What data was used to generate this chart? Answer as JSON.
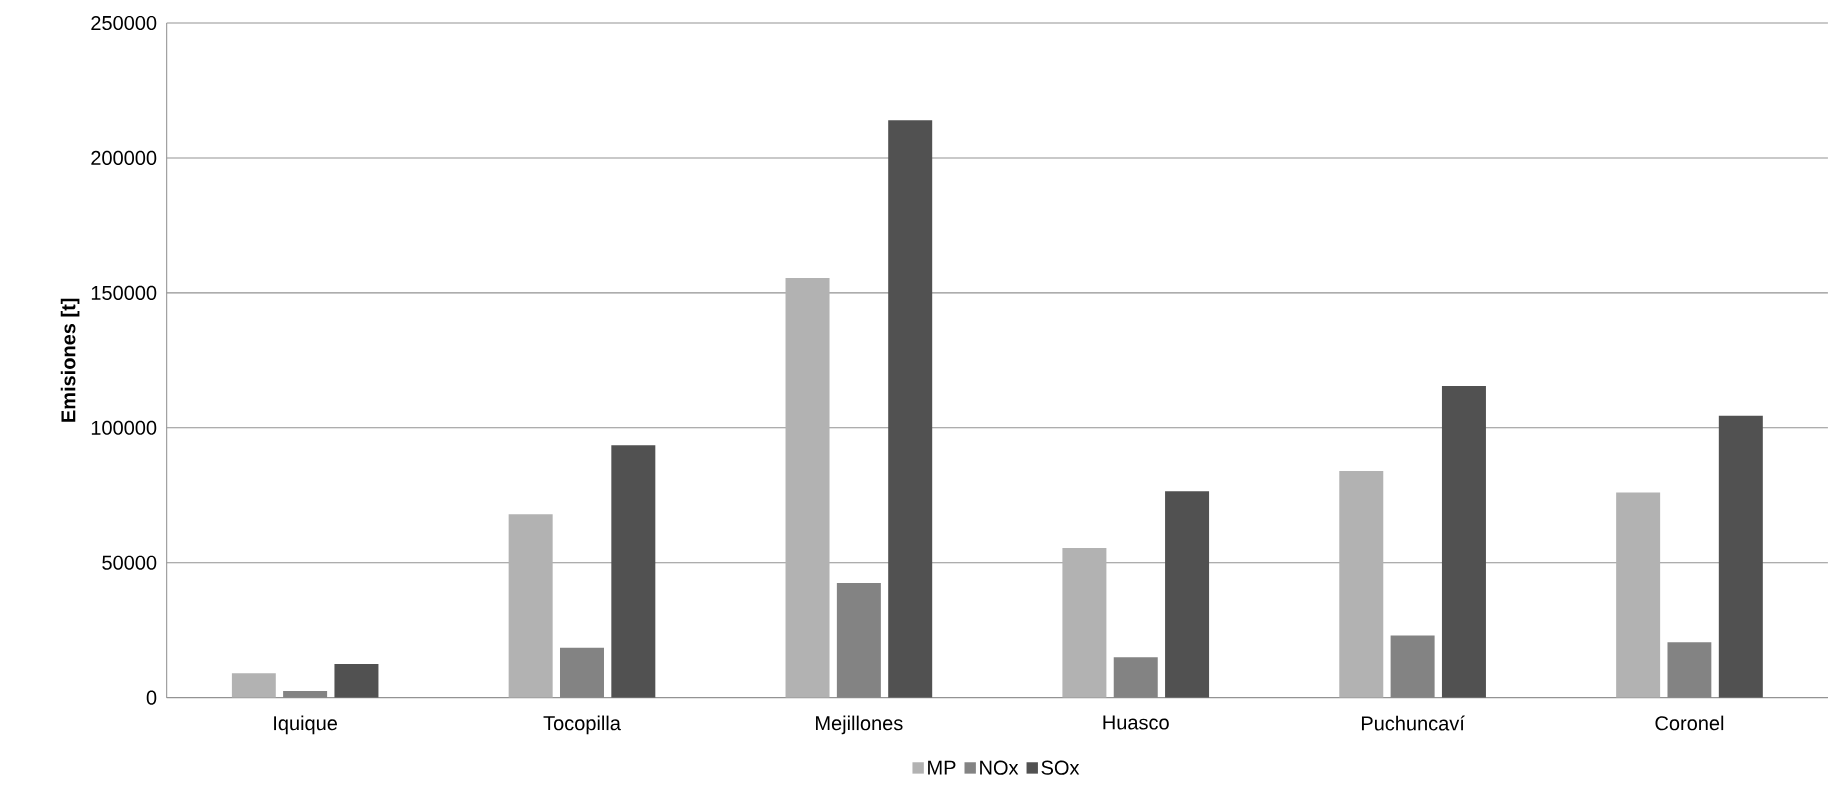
{
  "chart_data": {
    "type": "bar",
    "ylabel": "Emisiones [t]",
    "categories": [
      "Iquique",
      "Tocopilla",
      "Mejillones",
      "Huasco",
      "Puchuncaví",
      "Coronel"
    ],
    "series": [
      {
        "name": "MP",
        "color": "#b2b2b2",
        "values": [
          9000,
          68000,
          155500,
          55500,
          84000,
          76000
        ]
      },
      {
        "name": "NOx",
        "color": "#838383",
        "values": [
          2500,
          18500,
          42500,
          15000,
          23000,
          20500
        ]
      },
      {
        "name": "SOx",
        "color": "#515151",
        "values": [
          12500,
          93500,
          214000,
          76500,
          115500,
          104500
        ]
      }
    ],
    "ylim": [
      0,
      250000
    ],
    "yticks": [
      0,
      50000,
      100000,
      150000,
      200000,
      250000
    ],
    "grid": "y",
    "legend": "bottom"
  }
}
